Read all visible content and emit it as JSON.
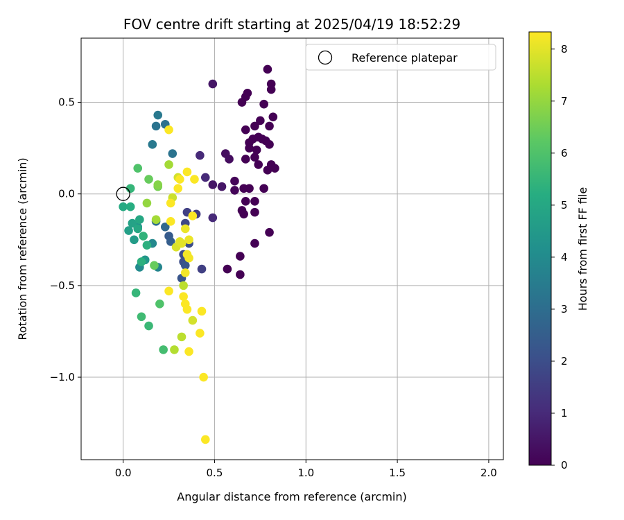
{
  "chart_data": {
    "type": "scatter",
    "title": "FOV centre drift starting at 2025/04/19 18:52:29",
    "xlabel": "Angular distance from reference (arcmin)",
    "ylabel": "Rotation from reference (arcmin)",
    "xlim": [
      -0.23,
      2.08
    ],
    "ylim": [
      -1.45,
      0.85
    ],
    "xticks": [
      0.0,
      0.5,
      1.0,
      1.5,
      2.0
    ],
    "xtick_labels": [
      "0.0",
      "0.5",
      "1.0",
      "1.5",
      "2.0"
    ],
    "yticks": [
      -1.0,
      -0.5,
      0.0,
      0.5
    ],
    "ytick_labels": [
      "−1.0",
      "−0.5",
      "0.0",
      "0.5"
    ],
    "grid": true,
    "legend": {
      "position": "top-right",
      "entries": [
        "Reference platepar"
      ]
    },
    "reference_point": {
      "x": 0.0,
      "y": 0.0
    },
    "colorbar": {
      "label": "Hours from first FF file",
      "min": 0,
      "max": 8.33,
      "ticks": [
        0,
        1,
        2,
        3,
        4,
        5,
        6,
        7,
        8
      ],
      "tick_labels": [
        "0",
        "1",
        "2",
        "3",
        "4",
        "5",
        "6",
        "7",
        "8"
      ],
      "colormap": "viridis"
    },
    "points": [
      [
        0.79,
        0.68,
        0.0
      ],
      [
        0.81,
        0.6,
        0.0
      ],
      [
        0.81,
        0.57,
        0.0
      ],
      [
        0.68,
        0.55,
        0.0
      ],
      [
        0.67,
        0.53,
        0.0
      ],
      [
        0.65,
        0.5,
        0.0
      ],
      [
        0.77,
        0.49,
        0.0
      ],
      [
        0.82,
        0.42,
        0.0
      ],
      [
        0.75,
        0.4,
        0.0
      ],
      [
        0.72,
        0.37,
        0.0
      ],
      [
        0.8,
        0.37,
        0.0
      ],
      [
        0.67,
        0.35,
        0.0
      ],
      [
        0.74,
        0.31,
        0.0
      ],
      [
        0.71,
        0.3,
        0.0
      ],
      [
        0.76,
        0.3,
        0.0
      ],
      [
        0.69,
        0.28,
        0.0
      ],
      [
        0.78,
        0.29,
        0.0
      ],
      [
        0.8,
        0.27,
        0.0
      ],
      [
        0.69,
        0.25,
        0.0
      ],
      [
        0.73,
        0.24,
        0.0
      ],
      [
        0.72,
        0.2,
        0.0
      ],
      [
        0.67,
        0.19,
        0.0
      ],
      [
        0.74,
        0.16,
        0.0
      ],
      [
        0.81,
        0.16,
        0.0
      ],
      [
        0.83,
        0.14,
        0.0
      ],
      [
        0.79,
        0.13,
        0.0
      ],
      [
        0.66,
        0.03,
        0.0
      ],
      [
        0.69,
        0.03,
        0.0
      ],
      [
        0.77,
        0.03,
        0.0
      ],
      [
        0.67,
        -0.04,
        0.0
      ],
      [
        0.72,
        -0.04,
        0.0
      ],
      [
        0.65,
        -0.09,
        0.0
      ],
      [
        0.72,
        -0.1,
        0.0
      ],
      [
        0.66,
        -0.11,
        0.0
      ],
      [
        0.8,
        -0.21,
        0.0
      ],
      [
        0.72,
        -0.27,
        0.0
      ],
      [
        0.64,
        -0.34,
        0.0
      ],
      [
        0.57,
        -0.41,
        0.0
      ],
      [
        0.64,
        -0.44,
        0.0
      ],
      [
        0.61,
        0.07,
        0.1
      ],
      [
        0.61,
        0.02,
        0.1
      ],
      [
        0.56,
        0.22,
        0.3
      ],
      [
        0.58,
        0.19,
        0.3
      ],
      [
        0.49,
        0.6,
        0.5
      ],
      [
        0.54,
        0.04,
        0.5
      ],
      [
        0.49,
        0.05,
        0.5
      ],
      [
        0.42,
        0.21,
        1.0
      ],
      [
        0.45,
        0.09,
        1.0
      ],
      [
        0.49,
        -0.13,
        1.0
      ],
      [
        0.4,
        -0.11,
        1.5
      ],
      [
        0.35,
        -0.1,
        1.6
      ],
      [
        0.43,
        -0.41,
        1.6
      ],
      [
        0.34,
        -0.16,
        1.8
      ],
      [
        0.33,
        -0.33,
        1.9
      ],
      [
        0.36,
        -0.27,
        2.0
      ],
      [
        0.33,
        -0.37,
        2.0
      ],
      [
        0.34,
        -0.39,
        2.2
      ],
      [
        0.32,
        -0.46,
        2.2
      ],
      [
        0.25,
        -0.23,
        2.4
      ],
      [
        0.26,
        -0.26,
        2.5
      ],
      [
        0.23,
        -0.18,
        2.8
      ],
      [
        0.18,
        -0.15,
        3.0
      ],
      [
        0.18,
        0.37,
        3.2
      ],
      [
        0.23,
        0.38,
        3.1
      ],
      [
        0.27,
        0.22,
        3.2
      ],
      [
        0.19,
        0.43,
        3.4
      ],
      [
        0.16,
        0.27,
        3.4
      ],
      [
        0.19,
        -0.4,
        3.8
      ],
      [
        0.16,
        -0.27,
        3.9
      ],
      [
        0.09,
        -0.4,
        4.0
      ],
      [
        0.08,
        -0.18,
        4.2
      ],
      [
        0.12,
        -0.36,
        4.4
      ],
      [
        0.06,
        -0.25,
        4.6
      ],
      [
        0.03,
        -0.2,
        4.7
      ],
      [
        0.05,
        -0.16,
        4.8
      ],
      [
        0.09,
        -0.14,
        5.0
      ],
      [
        0.08,
        -0.19,
        5.0
      ],
      [
        0.0,
        -0.07,
        5.1
      ],
      [
        0.04,
        -0.07,
        5.2
      ],
      [
        0.13,
        -0.28,
        5.3
      ],
      [
        0.1,
        -0.37,
        5.3
      ],
      [
        0.11,
        -0.23,
        5.4
      ],
      [
        0.04,
        0.03,
        5.5
      ],
      [
        0.07,
        -0.54,
        5.5
      ],
      [
        0.14,
        -0.72,
        5.6
      ],
      [
        0.1,
        -0.67,
        5.7
      ],
      [
        0.22,
        -0.85,
        5.8
      ],
      [
        0.2,
        -0.6,
        6.0
      ],
      [
        0.08,
        0.14,
        6.0
      ],
      [
        0.14,
        0.08,
        6.4
      ],
      [
        0.17,
        -0.39,
        6.4
      ],
      [
        0.19,
        0.04,
        6.6
      ],
      [
        0.19,
        0.05,
        6.8
      ],
      [
        0.13,
        -0.05,
        7.0
      ],
      [
        0.18,
        -0.14,
        7.2
      ],
      [
        0.25,
        0.16,
        7.2
      ],
      [
        0.28,
        -0.85,
        7.4
      ],
      [
        0.32,
        -0.78,
        7.5
      ],
      [
        0.33,
        -0.5,
        7.5
      ],
      [
        0.38,
        -0.69,
        7.8
      ],
      [
        0.27,
        -0.02,
        7.7
      ],
      [
        0.3,
        0.09,
        7.8
      ],
      [
        0.29,
        -0.29,
        7.9
      ],
      [
        0.31,
        -0.26,
        8.0
      ],
      [
        0.32,
        -0.27,
        8.0
      ],
      [
        0.34,
        -0.19,
        8.1
      ],
      [
        0.36,
        -0.25,
        8.1
      ],
      [
        0.34,
        -0.43,
        8.2
      ],
      [
        0.35,
        -0.33,
        8.2
      ],
      [
        0.36,
        -0.35,
        8.2
      ],
      [
        0.33,
        -0.56,
        8.3
      ],
      [
        0.34,
        -0.6,
        8.3
      ],
      [
        0.35,
        -0.63,
        8.3
      ],
      [
        0.43,
        -0.64,
        8.3
      ],
      [
        0.42,
        -0.76,
        8.3
      ],
      [
        0.36,
        -0.86,
        8.3
      ],
      [
        0.44,
        -1.0,
        8.3
      ],
      [
        0.45,
        -1.34,
        8.3
      ],
      [
        0.25,
        -0.53,
        8.3
      ],
      [
        0.26,
        -0.15,
        8.3
      ],
      [
        0.26,
        -0.05,
        8.3
      ],
      [
        0.3,
        0.03,
        8.3
      ],
      [
        0.31,
        0.08,
        8.3
      ],
      [
        0.35,
        0.12,
        8.3
      ],
      [
        0.39,
        0.08,
        8.3
      ],
      [
        0.38,
        -0.12,
        8.3
      ],
      [
        0.25,
        0.35,
        8.3
      ]
    ]
  }
}
